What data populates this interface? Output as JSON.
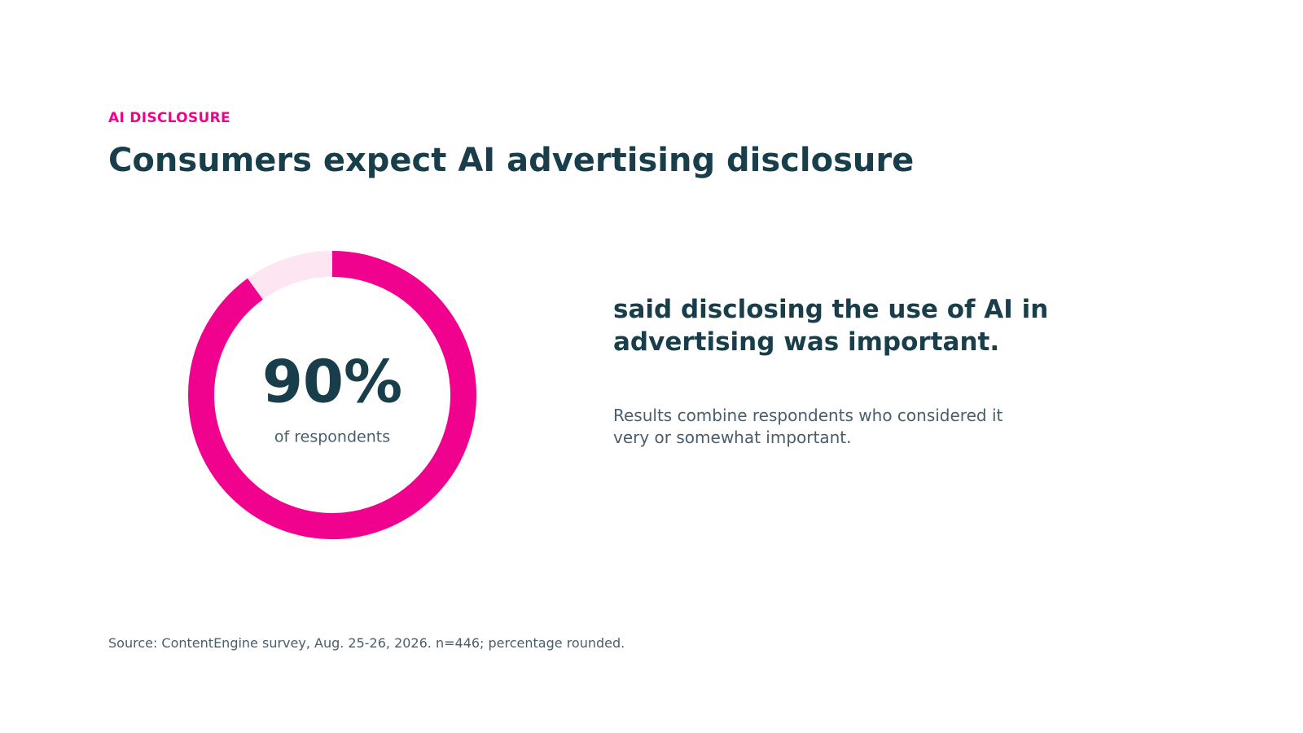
{
  "chart_data": {
    "type": "donut",
    "kicker": "AI DISCLOSURE",
    "title": "Consumers expect AI advertising disclosure",
    "values": [
      90
    ],
    "value_labels": [
      "90%"
    ],
    "ylim": [
      0,
      100
    ],
    "center_label": "of respondents",
    "color": "#f0028f",
    "track_color": "#fde6f2",
    "annotations": [
      "said disclosing the use of AI in advertising was important.",
      "Results combine respondents who considered it very or somewhat important."
    ],
    "source": "Source: ContentEngine survey, Aug. 25-26, 2026. n=446; percentage rounded."
  }
}
